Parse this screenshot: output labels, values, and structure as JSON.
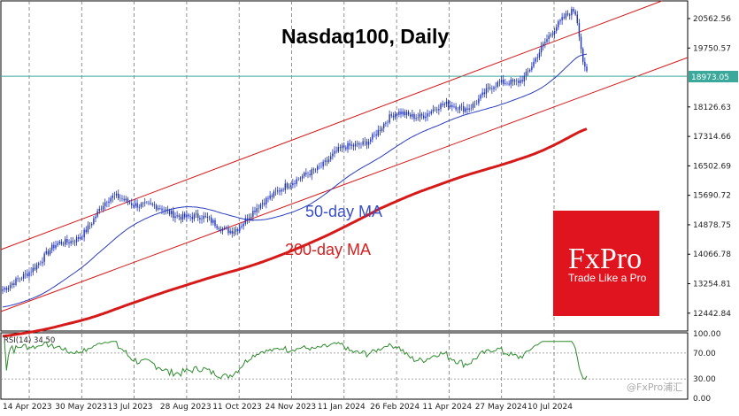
{
  "chart_data": {
    "type": "candlestick",
    "title": "Nasdaq100, Daily",
    "colors": {
      "candles": "#1f33b8",
      "ma50": "#2a3cc0",
      "ma200": "#d61a1a",
      "channel": "#d61a1a",
      "rsi": "#2e8b2e",
      "price_line": "#3aa89a",
      "brand_red": "#e0141e"
    },
    "x_ticks": [
      "14 Apr 2023",
      "30 May 2023",
      "13 Jul 2023",
      "28 Aug 2023",
      "11 Oct 2023",
      "24 Nov 2023",
      "11 Jan 2024",
      "26 Feb 2024",
      "11 Apr 2024",
      "27 May 2024",
      "10 Jul 2024"
    ],
    "y_ticks": [
      "20562.56",
      "19750.57",
      "18126.63",
      "17314.66",
      "16502.69",
      "15690.72",
      "14878.75",
      "14066.78",
      "13254.81",
      "12442.84"
    ],
    "ylim": [
      11950,
      21050
    ],
    "current_price": 18973.05,
    "current_price_label": "18973.05",
    "anchor_closes": [
      [
        "14 Apr 2023",
        13100
      ],
      [
        "30 May 2023",
        14300
      ],
      [
        "13 Jul 2023",
        15600
      ],
      [
        "28 Aug 2023",
        15200
      ],
      [
        "11 Oct 2023",
        14800
      ],
      [
        "24 Nov 2023",
        16000
      ],
      [
        "11 Jan 2024",
        16950
      ],
      [
        "26 Feb 2024",
        17900
      ],
      [
        "11 Apr 2024",
        18150
      ],
      [
        "27 May 2024",
        18900
      ],
      [
        "10 Jul 2024",
        20800
      ],
      [
        "late Jul 2024",
        18973
      ]
    ],
    "ma50_label": "50-day MA",
    "ma200_label": "200-day MA",
    "rsi": {
      "label": "RSI(14) 34.50",
      "last": 34.5,
      "y_ticks": [
        "100.00",
        "70.00",
        "30.00",
        "0.00"
      ],
      "ylim": [
        0,
        100
      ]
    }
  },
  "branding": {
    "logo": "FxPro",
    "tagline": "Trade Like a Pro"
  }
}
